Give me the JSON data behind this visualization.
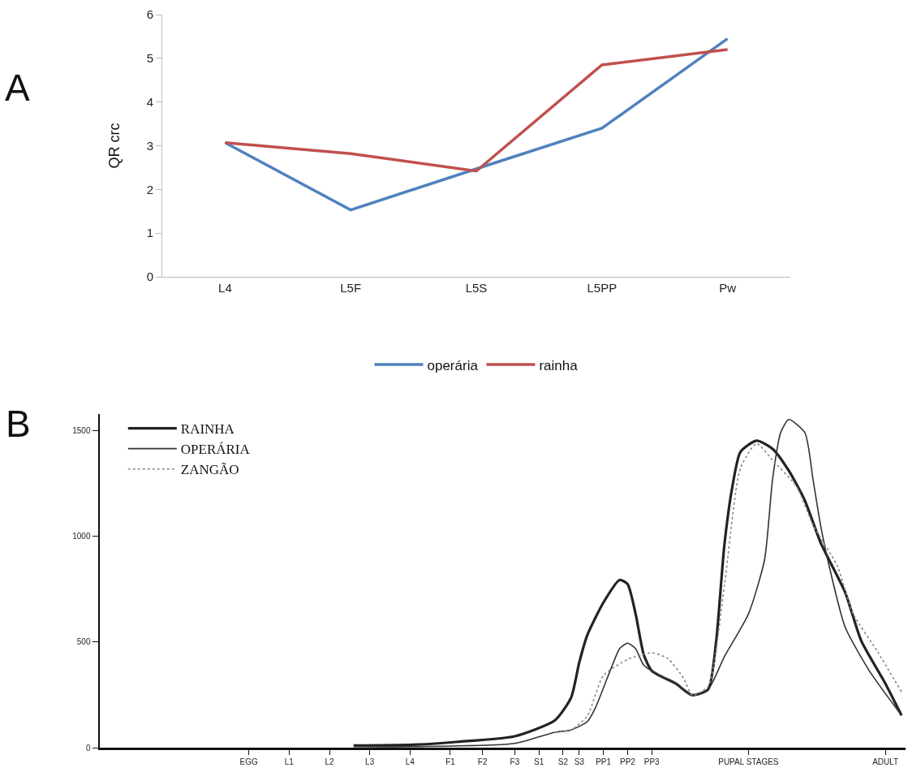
{
  "chart_data": [
    {
      "type": "line",
      "ylabel": "QR crc",
      "annotations": [
        "A"
      ],
      "categories": [
        "L4",
        "L5F",
        "L5S",
        "L5PP",
        "Pw"
      ],
      "series": [
        {
          "name": "operária",
          "color": "#4f81bd",
          "values": [
            3.07,
            1.53,
            2.47,
            3.4,
            5.45
          ]
        },
        {
          "name": "rainha",
          "color": "#c0504d",
          "values": [
            3.07,
            2.82,
            2.42,
            4.85,
            5.2
          ]
        }
      ],
      "ylim": [
        0,
        6
      ],
      "yticks": [
        0,
        1,
        2,
        3,
        4,
        5,
        6
      ],
      "grid": false,
      "legend": "bottom",
      "marker": "none"
    },
    {
      "type": "line",
      "annotations": [
        "B"
      ],
      "categories": [
        null,
        null,
        null,
        null,
        null,
        null,
        null,
        null,
        null,
        null,
        null,
        null,
        null,
        null,
        null,
        null,
        null,
        null,
        "EGG",
        null,
        null,
        null,
        null,
        "L1",
        null,
        null,
        null,
        null,
        "L2",
        null,
        null,
        null,
        null,
        "L3",
        null,
        null,
        null,
        null,
        "L4",
        null,
        null,
        null,
        null,
        "F1",
        null,
        null,
        null,
        "F2",
        null,
        null,
        null,
        "F3",
        null,
        null,
        "S1",
        null,
        null,
        "S2",
        null,
        "S3",
        null,
        null,
        "PP1",
        null,
        null,
        "PP2",
        null,
        null,
        "PP3",
        null,
        null,
        null,
        null,
        null,
        null,
        null,
        null,
        null,
        null,
        null,
        "PUPAL STAGES",
        null,
        null,
        null,
        null,
        null,
        null,
        null,
        null,
        null,
        null,
        null,
        null,
        null,
        null,
        null,
        null,
        "ADULT",
        null,
        null
      ],
      "ylim": [
        0,
        1580
      ],
      "yticks": [
        0,
        500,
        1000,
        1500
      ],
      "grid": false,
      "legend": "top left",
      "marker": "none",
      "series": [
        {
          "name": "RAINHA",
          "color": "#222222",
          "line_style": "solid",
          "values": [
            null,
            null,
            null,
            null,
            null,
            null,
            null,
            null,
            null,
            null,
            null,
            null,
            null,
            null,
            null,
            null,
            null,
            null,
            null,
            null,
            null,
            null,
            null,
            null,
            null,
            null,
            null,
            null,
            null,
            null,
            null,
            10,
            null,
            null,
            null,
            null,
            null,
            null,
            null,
            15,
            null,
            null,
            null,
            null,
            28,
            null,
            null,
            null,
            null,
            null,
            null,
            54,
            null,
            null,
            null,
            null,
            130,
            null,
            238,
            403,
            533,
            null,
            687,
            null,
            794,
            775,
            633,
            441,
            364,
            null,
            null,
            303,
            null,
            249,
            null,
            276,
            506,
            955,
            1235,
            1400,
            null,
            1454,
            null,
            1415,
            null,
            1312,
            null,
            1170,
            null,
            967,
            null,
            null,
            736,
            null,
            506,
            null,
            null,
            303,
            null,
            153
          ]
        },
        {
          "name": "OPERÁRIA",
          "color": "#333333",
          "line_style": "solid",
          "values": [
            null,
            null,
            null,
            null,
            null,
            null,
            null,
            null,
            null,
            null,
            null,
            null,
            null,
            null,
            null,
            null,
            null,
            null,
            null,
            null,
            null,
            null,
            null,
            null,
            null,
            null,
            null,
            null,
            null,
            null,
            null,
            5,
            null,
            null,
            null,
            null,
            null,
            null,
            null,
            5,
            null,
            null,
            null,
            null,
            null,
            null,
            null,
            null,
            null,
            null,
            null,
            20,
            null,
            null,
            null,
            null,
            73,
            null,
            84,
            null,
            123,
            188,
            null,
            380,
            468,
            495,
            468,
            391,
            null,
            341,
            null,
            303,
            null,
            249,
            null,
            276,
            null,
            430,
            null,
            null,
            633,
            null,
            890,
            1273,
            1492,
            1554,
            null,
            1492,
            1273,
            1043,
            863,
            null,
            571,
            null,
            null,
            364,
            null,
            null,
            null,
            153
          ]
        },
        {
          "name": "ZANGÃO",
          "color": "#888888",
          "line_style": "dotted",
          "values": [
            null,
            null,
            null,
            null,
            null,
            null,
            null,
            null,
            null,
            null,
            null,
            null,
            null,
            null,
            null,
            null,
            null,
            null,
            null,
            null,
            null,
            null,
            null,
            null,
            null,
            null,
            null,
            null,
            null,
            null,
            null,
            null,
            null,
            null,
            null,
            null,
            null,
            null,
            null,
            null,
            null,
            null,
            null,
            null,
            null,
            null,
            null,
            null,
            null,
            null,
            null,
            null,
            null,
            null,
            null,
            null,
            73,
            null,
            84,
            null,
            150,
            null,
            341,
            null,
            null,
            418,
            null,
            null,
            449,
            null,
            422,
            null,
            326,
            249,
            null,
            290,
            null,
            763,
            null,
            1323,
            null,
            1440,
            null,
            1361,
            null,
            null,
            1235,
            null,
            1055,
            null,
            null,
            863,
            null,
            633,
            null,
            null,
            456,
            null,
            null,
            264
          ]
        }
      ]
    }
  ]
}
